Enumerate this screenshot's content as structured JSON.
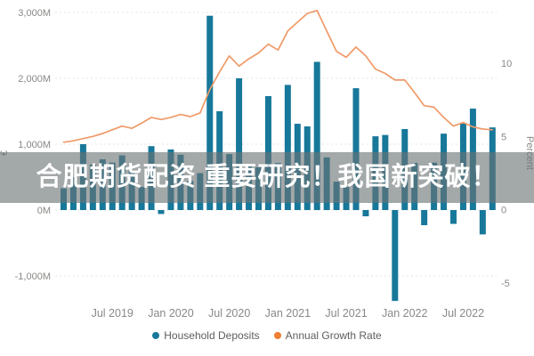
{
  "page": {
    "background": "#ffffff"
  },
  "overlay": {
    "text": "合肥期货配资 重要研究！我国新突破！",
    "text_color": "#ffffff",
    "band_color": "rgba(106,115,117,0.62)"
  },
  "legend": {
    "items": [
      {
        "label": "Household Deposits",
        "color": "#17789A",
        "marker": "circle"
      },
      {
        "label": "Annual Growth Rate",
        "color": "#EE7E30",
        "marker": "circle"
      }
    ]
  },
  "colors": {
    "bar": "#17789A",
    "line": "#F09A68",
    "grid": "#E4E4E4",
    "axis_text": "#8A8886",
    "legend_text": "#605e5c"
  },
  "chart_data": {
    "type": "bar",
    "subtype": "combo-bar-line-dual-axis",
    "x": [
      "Feb 2019",
      "Mar 2019",
      "Apr 2019",
      "May 2019",
      "Jun 2019",
      "Jul 2019",
      "Aug 2019",
      "Sep 2019",
      "Oct 2019",
      "Nov 2019",
      "Dec 2019",
      "Jan 2020",
      "Feb 2020",
      "Mar 2020",
      "Apr 2020",
      "May 2020",
      "Jun 2020",
      "Jul 2020",
      "Aug 2020",
      "Sep 2020",
      "Oct 2020",
      "Nov 2020",
      "Dec 2020",
      "Jan 2021",
      "Feb 2021",
      "Mar 2021",
      "Apr 2021",
      "May 2021",
      "Jun 2021",
      "Jul 2021",
      "Aug 2021",
      "Sep 2021",
      "Oct 2021",
      "Nov 2021",
      "Dec 2021",
      "Jan 2022",
      "Feb 2022",
      "Mar 2022",
      "Apr 2022",
      "May 2022",
      "Jun 2022",
      "Jul 2022",
      "Aug 2022",
      "Sep 2022",
      "Oct 2022"
    ],
    "series": [
      {
        "name": "Household Deposits",
        "type": "bar",
        "axis": "left",
        "units": "M",
        "values": [
          330,
          500,
          1000,
          690,
          770,
          720,
          830,
          600,
          350,
          970,
          -60,
          920,
          840,
          440,
          560,
          2950,
          1500,
          850,
          2000,
          690,
          650,
          1730,
          715,
          1900,
          1310,
          1270,
          2250,
          800,
          430,
          350,
          1850,
          -95,
          1120,
          1140,
          -1380,
          1230,
          715,
          -230,
          720,
          1160,
          -210,
          1320,
          1540,
          -370,
          1255
        ]
      },
      {
        "name": "Annual Growth Rate",
        "type": "line",
        "axis": "right",
        "units": "Percent",
        "values": [
          4.6,
          4.7,
          4.85,
          5.0,
          5.2,
          5.45,
          5.7,
          5.55,
          5.9,
          6.3,
          6.15,
          6.3,
          6.5,
          6.35,
          6.6,
          8.2,
          9.4,
          10.5,
          9.8,
          10.3,
          10.7,
          11.3,
          10.9,
          12.2,
          12.8,
          13.4,
          13.6,
          12.2,
          10.8,
          10.4,
          11.1,
          10.5,
          9.6,
          9.3,
          8.85,
          8.85,
          8.0,
          7.1,
          7.0,
          6.3,
          5.7,
          5.95,
          5.65,
          5.5,
          5.45
        ]
      }
    ],
    "left_axis": {
      "title": "€",
      "tick_labels": [
        "3,000M",
        "2,000M",
        "1,000M",
        "0M",
        "-1,000M"
      ],
      "tick_values": [
        3000,
        2000,
        1000,
        0,
        -1000
      ],
      "range": [
        -1000,
        3000
      ]
    },
    "right_axis": {
      "title": "Percent",
      "tick_labels": [
        "10",
        "5",
        "0",
        "-5"
      ],
      "tick_values": [
        10,
        5,
        0,
        -5
      ],
      "range": [
        -5,
        10
      ]
    },
    "x_tick_labels": [
      "Jul 2019",
      "Jan 2020",
      "Jul 2020",
      "Jan 2021",
      "Jul 2021",
      "Jan 2022",
      "Jul 2022"
    ],
    "x_tick_indices": [
      5,
      11,
      17,
      23,
      29,
      35,
      41
    ],
    "grid": "dashed-horizontal",
    "legend_position": "bottom-center"
  }
}
